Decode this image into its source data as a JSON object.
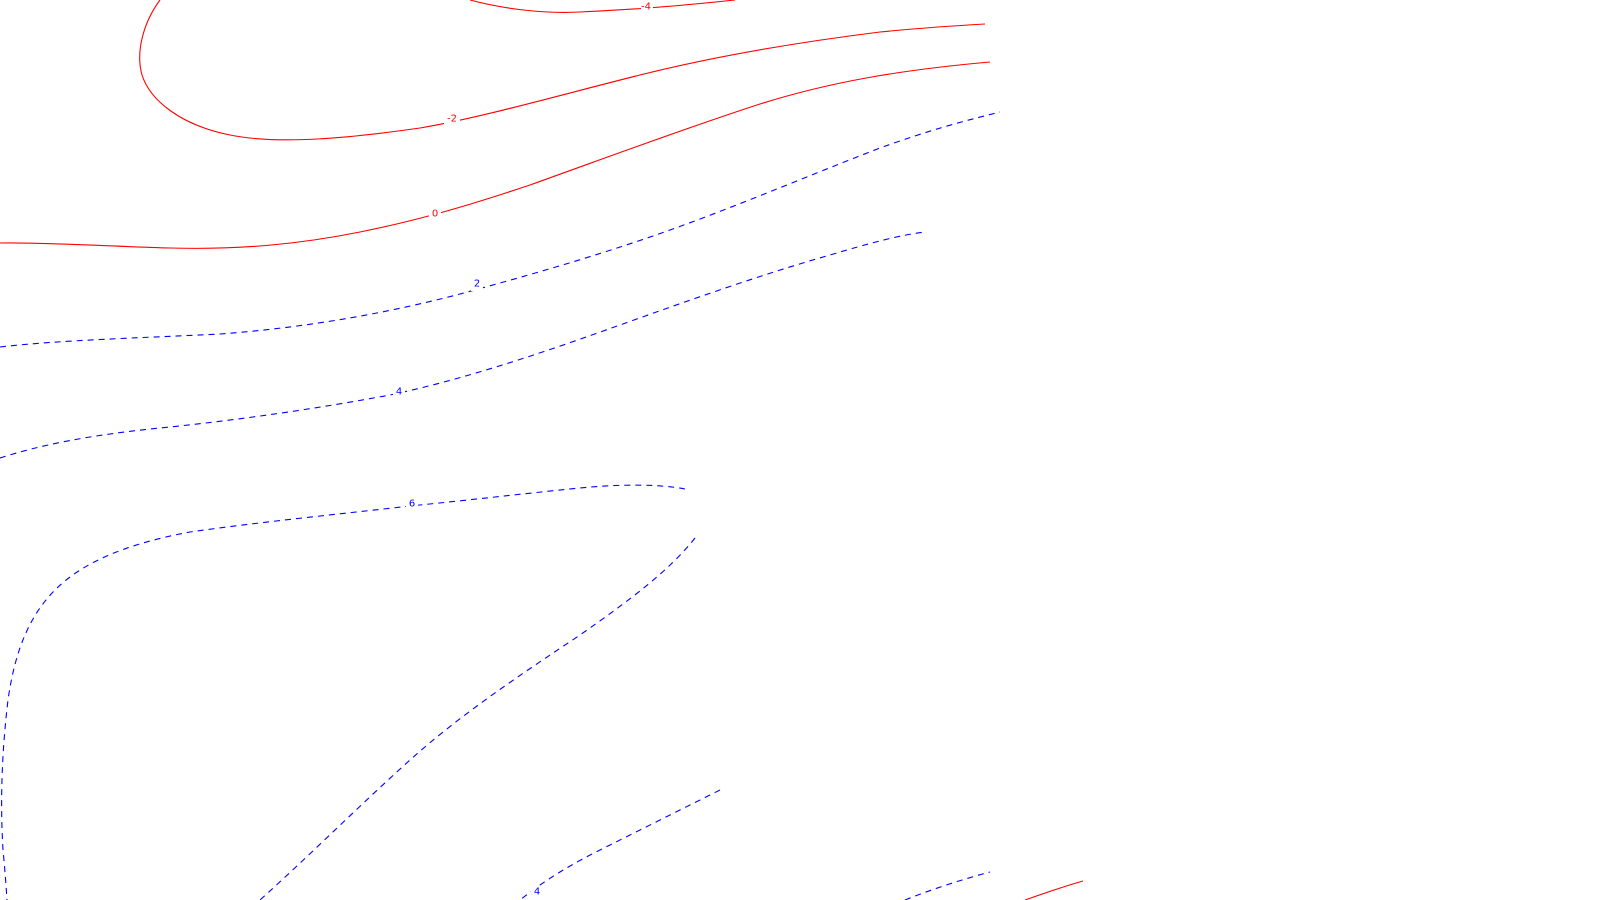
{
  "map": {
    "background": "#ffffff",
    "negative_color": "#ff0000",
    "positive_color": "#0000ff",
    "contour_interval": 2,
    "negative_style": "solid",
    "positive_style": "dashed"
  },
  "contours": [
    {
      "id": "c-neg4",
      "value": -4,
      "label": "-4"
    },
    {
      "id": "c-neg2",
      "value": -2,
      "label": "-2"
    },
    {
      "id": "c-0",
      "value": 0,
      "label": "0"
    },
    {
      "id": "c-2",
      "value": 2,
      "label": "2"
    },
    {
      "id": "c-4",
      "value": 4,
      "label": "4"
    },
    {
      "id": "c-6",
      "value": 6,
      "label": "6"
    },
    {
      "id": "c-4-lower",
      "value": 4,
      "label": "4"
    },
    {
      "id": "c-frag-blue",
      "value": 2,
      "label": ""
    },
    {
      "id": "c-frag-red",
      "value": 0,
      "label": ""
    }
  ]
}
